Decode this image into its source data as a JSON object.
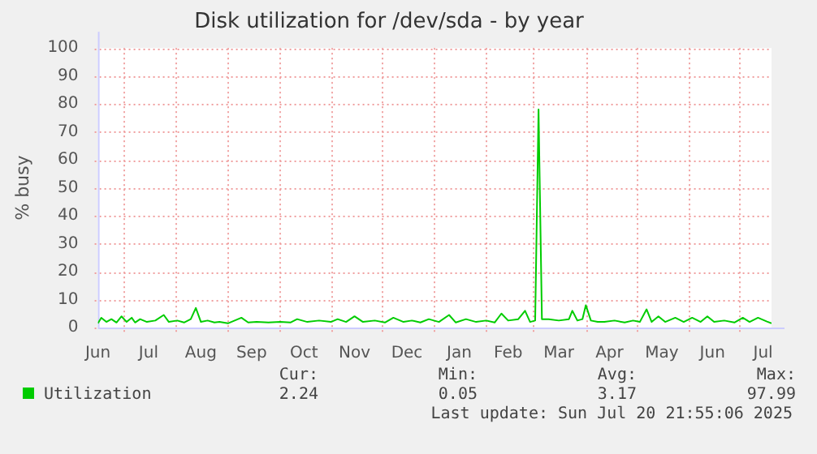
{
  "chart_data": {
    "type": "line",
    "title": "Disk utilization for /dev/sda - by year",
    "ylabel": "% busy",
    "x": [
      "2024-06-16",
      "2024-06-18",
      "2024-06-21",
      "2024-06-24",
      "2024-06-27",
      "2024-06-30",
      "2024-07-03",
      "2024-07-06",
      "2024-07-08",
      "2024-07-11",
      "2024-07-15",
      "2024-07-20",
      "2024-07-25",
      "2024-07-28",
      "2024-08-02",
      "2024-08-06",
      "2024-08-10",
      "2024-08-13",
      "2024-08-16",
      "2024-08-20",
      "2024-08-24",
      "2024-08-27",
      "2024-09-01",
      "2024-09-05",
      "2024-09-09",
      "2024-09-13",
      "2024-09-18",
      "2024-09-25",
      "2024-10-02",
      "2024-10-08",
      "2024-10-12",
      "2024-10-18",
      "2024-10-25",
      "2024-11-01",
      "2024-11-05",
      "2024-11-10",
      "2024-11-15",
      "2024-11-20",
      "2024-11-27",
      "2024-12-03",
      "2024-12-08",
      "2024-12-14",
      "2024-12-19",
      "2024-12-24",
      "2024-12-29",
      "2025-01-04",
      "2025-01-10",
      "2025-01-14",
      "2025-01-20",
      "2025-01-26",
      "2025-02-01",
      "2025-02-06",
      "2025-02-10",
      "2025-02-14",
      "2025-02-20",
      "2025-02-24",
      "2025-02-27",
      "2025-03-02",
      "2025-03-04",
      "2025-03-06",
      "2025-03-10",
      "2025-03-16",
      "2025-03-22",
      "2025-03-24",
      "2025-03-27",
      "2025-03-30",
      "2025-04-01",
      "2025-04-04",
      "2025-04-08",
      "2025-04-12",
      "2025-04-18",
      "2025-04-24",
      "2025-04-29",
      "2025-05-03",
      "2025-05-07",
      "2025-05-10",
      "2025-05-14",
      "2025-05-18",
      "2025-05-24",
      "2025-05-29",
      "2025-06-03",
      "2025-06-08",
      "2025-06-12",
      "2025-06-16",
      "2025-06-22",
      "2025-06-28",
      "2025-07-03",
      "2025-07-07",
      "2025-07-12",
      "2025-07-17",
      "2025-07-20"
    ],
    "series": [
      {
        "name": "Utilization",
        "color": "#00cc00",
        "values": [
          1.5,
          3.5,
          2,
          3,
          1.8,
          4,
          2,
          3.5,
          1.8,
          3,
          2,
          2.5,
          4.5,
          2,
          2.5,
          1.8,
          3,
          7,
          2,
          2.5,
          1.8,
          2,
          1.5,
          2.5,
          3.5,
          1.8,
          2,
          1.8,
          2,
          1.8,
          3,
          2,
          2.5,
          2,
          3,
          2,
          4,
          2,
          2.5,
          1.8,
          3.5,
          2,
          2.5,
          1.8,
          3,
          2,
          4.5,
          1.8,
          3,
          2,
          2.5,
          1.8,
          5,
          2.5,
          3,
          6,
          2,
          2.5,
          78,
          3,
          3,
          2.5,
          3,
          6,
          2.5,
          3,
          8,
          2.5,
          2,
          2,
          2.5,
          1.8,
          2.5,
          2,
          6.5,
          2,
          4,
          2,
          3.5,
          2,
          3.5,
          2,
          4,
          2,
          2.5,
          1.8,
          3.5,
          2,
          3.5,
          2.2,
          1.5
        ]
      }
    ],
    "xlim": [
      "2024-06-16",
      "2025-07-20"
    ],
    "xticks": [
      {
        "value": "2024-06-16",
        "label": "Jun"
      },
      {
        "value": "2024-07-16",
        "label": "Jul"
      },
      {
        "value": "2024-08-16",
        "label": "Aug"
      },
      {
        "value": "2024-09-15",
        "label": "Sep"
      },
      {
        "value": "2024-10-16",
        "label": "Oct"
      },
      {
        "value": "2024-11-15",
        "label": "Nov"
      },
      {
        "value": "2024-12-16",
        "label": "Dec"
      },
      {
        "value": "2025-01-16",
        "label": "Jan"
      },
      {
        "value": "2025-02-14",
        "label": "Feb"
      },
      {
        "value": "2025-03-16",
        "label": "Mar"
      },
      {
        "value": "2025-04-15",
        "label": "Apr"
      },
      {
        "value": "2025-05-16",
        "label": "May"
      },
      {
        "value": "2025-06-15",
        "label": "Jun"
      },
      {
        "value": "2025-07-15",
        "label": "Jul"
      }
    ],
    "ylim": [
      0,
      100
    ],
    "yticks": [
      0,
      10,
      20,
      30,
      40,
      50,
      60,
      70,
      80,
      90,
      100
    ],
    "grid": true,
    "legend": "bottom left",
    "marker": "none",
    "line_style": "solid",
    "annotations": [
      "Cur:",
      "Min:",
      "Avg:",
      "Max:",
      "2.24",
      "0.05",
      "3.17",
      "97.99",
      "Last update: Sun Jul 20 21:55:06 2025"
    ]
  }
}
